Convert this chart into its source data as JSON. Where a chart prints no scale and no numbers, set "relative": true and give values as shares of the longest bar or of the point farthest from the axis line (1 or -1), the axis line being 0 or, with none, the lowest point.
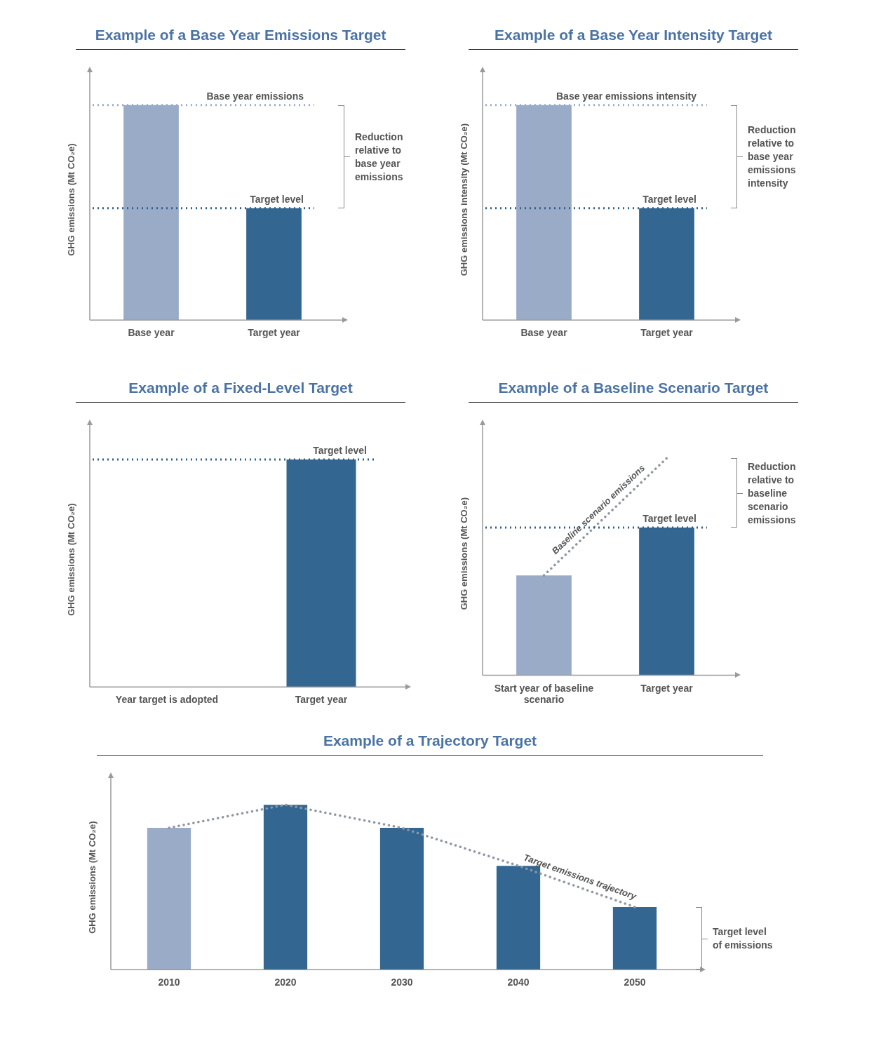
{
  "chart_data": [
    {
      "type": "bar",
      "title": "Example of a Base Year Emissions Target",
      "ylabel": "GHG emissions (Mt CO₂e)",
      "relative": true,
      "legend": false,
      "grid": false,
      "categories": [
        "Base year",
        "Target year"
      ],
      "series": [
        {
          "colors": [
            "#9aabc8",
            "#336690"
          ],
          "values": [
            1,
            0.52
          ]
        }
      ],
      "ref_lines": [
        {
          "axis": "y",
          "value": 1,
          "label": "Base year emissions",
          "color": "#9aabc8",
          "line_style": "dotted"
        },
        {
          "axis": "y",
          "value": 0.52,
          "label": "Target level",
          "color": "#2e5f8a",
          "line_style": "dotted"
        }
      ],
      "annotations": [
        "Reduction relative to base year emissions"
      ]
    },
    {
      "type": "bar",
      "title": "Example of a Base Year Intensity Target",
      "ylabel": "GHG emissions intensity (Mt CO₂e)",
      "relative": true,
      "legend": false,
      "grid": false,
      "categories": [
        "Base year",
        "Target year"
      ],
      "series": [
        {
          "colors": [
            "#9aabc8",
            "#336690"
          ],
          "values": [
            1,
            0.52
          ]
        }
      ],
      "ref_lines": [
        {
          "axis": "y",
          "value": 1,
          "label": "Base year emissions intensity",
          "color": "#9aabc8",
          "line_style": "dotted"
        },
        {
          "axis": "y",
          "value": 0.52,
          "label": "Target level",
          "color": "#2e5f8a",
          "line_style": "dotted"
        }
      ],
      "annotations": [
        "Reduction relative to base year emissions intensity"
      ]
    },
    {
      "type": "bar",
      "title": "Example of a Fixed-Level Target",
      "ylabel": "GHG emissions (Mt CO₂e)",
      "relative": true,
      "legend": false,
      "grid": false,
      "categories": [
        "Year target is adopted",
        "Target year"
      ],
      "series": [
        {
          "colors": [
            "#9aabc8",
            "#336690"
          ],
          "values": [
            null,
            1
          ]
        }
      ],
      "ref_lines": [
        {
          "axis": "y",
          "value": 1,
          "label": "Target level",
          "color": "#2e5f8a",
          "line_style": "dotted"
        }
      ]
    },
    {
      "type": "bar",
      "title": "Example of a Baseline Scenario Target",
      "ylabel": "GHG emissions (Mt CO₂e)",
      "relative": true,
      "legend": false,
      "grid": false,
      "categories": [
        "Start year of baseline scenario",
        "Target year"
      ],
      "series": [
        {
          "colors": [
            "#9aabc8",
            "#336690"
          ],
          "values": [
            0.46,
            0.68
          ]
        },
        {
          "type": "line",
          "name": "Baseline scenario emissions",
          "color": "#8f96a3",
          "line_style": "dotted",
          "marker": "none",
          "values": [
            0.46,
            1
          ]
        }
      ],
      "ref_lines": [
        {
          "axis": "y",
          "value": 0.68,
          "label": "Target level",
          "color": "#2e5f8a",
          "line_style": "dotted"
        }
      ],
      "annotations": [
        "Reduction relative to baseline scenario emissions"
      ]
    },
    {
      "type": "bar",
      "title": "Example of a Trajectory Target",
      "ylabel": "GHG emissions (Mt CO₂e)",
      "relative": true,
      "legend": false,
      "grid": false,
      "categories": [
        "2010",
        "2020",
        "2030",
        "2040",
        "2050"
      ],
      "series": [
        {
          "colors": [
            "#9aabc8",
            "#336690",
            "#336690",
            "#336690",
            "#336690"
          ],
          "values": [
            0.86,
            1,
            0.86,
            0.63,
            0.38
          ]
        },
        {
          "type": "line",
          "name": "Target emissions trajectory",
          "color": "#8f96a3",
          "line_style": "dotted",
          "marker": "none",
          "values": [
            0.86,
            1,
            0.86,
            0.63,
            0.38
          ]
        }
      ],
      "annotations": [
        "Target level of emissions"
      ]
    }
  ]
}
